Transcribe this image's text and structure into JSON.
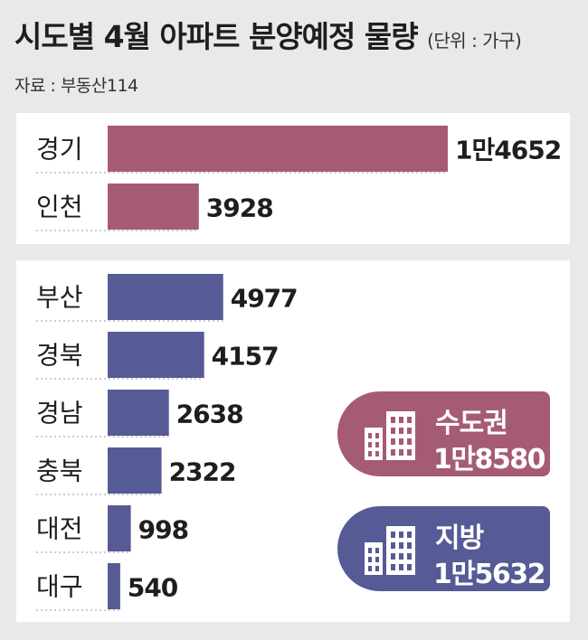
{
  "header": {
    "title": "시도별 4월 아파트 분양예정 물량",
    "unit": "(단위 : 가구)",
    "source": "자료 : 부동산114"
  },
  "chart_data": {
    "type": "bar",
    "orientation": "horizontal",
    "groups": [
      {
        "categories": [
          "경기",
          "인천"
        ],
        "values": [
          14652,
          3928
        ],
        "value_labels": [
          "1만4652",
          "3928"
        ],
        "color": "#a65b75"
      },
      {
        "categories": [
          "부산",
          "경북",
          "경남",
          "충북",
          "대전",
          "대구"
        ],
        "values": [
          4977,
          4157,
          2638,
          2322,
          998,
          540
        ],
        "value_labels": [
          "4977",
          "4157",
          "2638",
          "2322",
          "998",
          "540"
        ],
        "color": "#565a95"
      }
    ],
    "xlim": [
      0,
      14652
    ],
    "grid": false,
    "legend": "none"
  },
  "summary": {
    "metro": {
      "label": "수도권",
      "total": "1만8580",
      "color": "#a65b75"
    },
    "region": {
      "label": "지방",
      "total": "1만5632",
      "color": "#565a95"
    }
  },
  "icons": {
    "building": "building-icon"
  }
}
